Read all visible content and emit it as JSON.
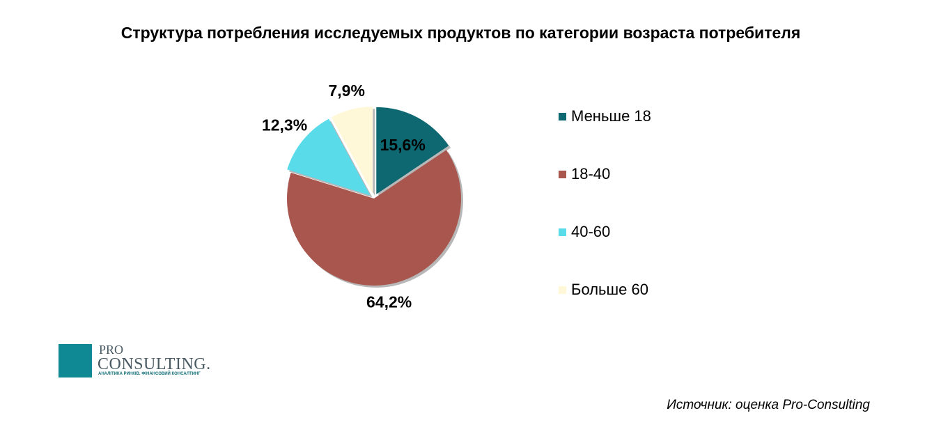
{
  "chart_data": {
    "type": "pie",
    "title": "Структура потребления исследуемых продуктов по категории возраста потребителя",
    "categories": [
      "Меньше 18",
      "18-40",
      "40-60",
      "Больше 60"
    ],
    "values": [
      15.6,
      64.2,
      12.3,
      7.9
    ],
    "value_labels": [
      "15,6%",
      "64,2%",
      "12,3%",
      "7,9%"
    ],
    "colors": [
      "#0e6872",
      "#a9574e",
      "#5adbe9",
      "#fff8d8"
    ],
    "exploded": [
      true,
      false,
      true,
      true
    ],
    "start_angle": "top, clockwise",
    "legend": "right"
  },
  "logo": {
    "text_pro": "PRO",
    "text_consulting": "CONSULTING.",
    "tagline": "АНАЛІТИКА РИНКІВ. ФІНАНСОВИЙ КОНСАЛТИНГ",
    "color": "#0f8a95"
  },
  "source": "Источник: оценка Pro-Consulting"
}
